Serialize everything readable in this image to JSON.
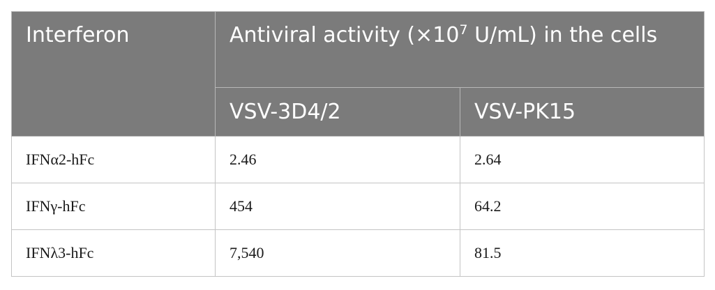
{
  "table": {
    "header": {
      "interferon": "Interferon",
      "activity_prefix": "Antiviral activity (×10",
      "activity_sup": "7",
      "activity_suffix": " U/mL) in the cells",
      "sub": [
        "VSV-3D4/2",
        "VSV-PK15"
      ]
    },
    "rows": [
      {
        "name": "IFNα2-hFc",
        "vsv_3d4_2": "2.46",
        "vsv_pk15": "2.64"
      },
      {
        "name": "IFNγ-hFc",
        "vsv_3d4_2": "454",
        "vsv_pk15": "64.2"
      },
      {
        "name": "IFNλ3-hFc",
        "vsv_3d4_2": "7,540",
        "vsv_pk15": "81.5"
      }
    ]
  }
}
